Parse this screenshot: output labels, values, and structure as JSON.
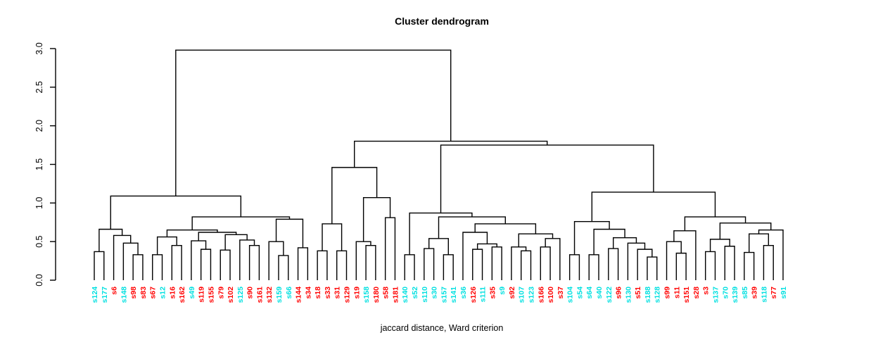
{
  "chart_data": {
    "type": "dendrogram",
    "title": "Cluster dendrogram",
    "subtitle": "jaccard distance, Ward criterion",
    "ylabel": "",
    "xlabel": "",
    "ylim": [
      0,
      3
    ],
    "ytick_labels": [
      "0.0",
      "0.5",
      "1.0",
      "1.5",
      "2.0",
      "2.5",
      "3.0"
    ],
    "ytick_values": [
      0,
      0.5,
      1,
      1.5,
      2,
      2.5,
      3
    ],
    "grid": "off",
    "legend": "none",
    "colors": {
      "red": "#ff0000",
      "cyan": "#00e0e0",
      "line": "#000000"
    },
    "leaves": [
      [
        "s124",
        "cyan"
      ],
      [
        "s177",
        "cyan"
      ],
      [
        "s6",
        "red"
      ],
      [
        "s148",
        "cyan"
      ],
      [
        "s98",
        "red"
      ],
      [
        "s83",
        "red"
      ],
      [
        "s67",
        "red"
      ],
      [
        "s12",
        "cyan"
      ],
      [
        "s16",
        "red"
      ],
      [
        "s162",
        "red"
      ],
      [
        "s49",
        "cyan"
      ],
      [
        "s119",
        "red"
      ],
      [
        "s155",
        "red"
      ],
      [
        "s79",
        "red"
      ],
      [
        "s102",
        "red"
      ],
      [
        "s125",
        "cyan"
      ],
      [
        "s90",
        "red"
      ],
      [
        "s161",
        "red"
      ],
      [
        "s132",
        "red"
      ],
      [
        "s159",
        "cyan"
      ],
      [
        "s66",
        "cyan"
      ],
      [
        "s144",
        "red"
      ],
      [
        "s34",
        "red"
      ],
      [
        "s18",
        "red"
      ],
      [
        "s33",
        "red"
      ],
      [
        "s31",
        "red"
      ],
      [
        "s129",
        "red"
      ],
      [
        "s19",
        "red"
      ],
      [
        "s158",
        "cyan"
      ],
      [
        "s180",
        "red"
      ],
      [
        "s58",
        "red"
      ],
      [
        "s181",
        "red"
      ],
      [
        "s140",
        "cyan"
      ],
      [
        "s52",
        "cyan"
      ],
      [
        "s110",
        "cyan"
      ],
      [
        "s30",
        "cyan"
      ],
      [
        "s157",
        "cyan"
      ],
      [
        "s141",
        "cyan"
      ],
      [
        "s36",
        "cyan"
      ],
      [
        "s126",
        "red"
      ],
      [
        "s111",
        "cyan"
      ],
      [
        "s35",
        "red"
      ],
      [
        "s9",
        "cyan"
      ],
      [
        "s92",
        "red"
      ],
      [
        "s107",
        "cyan"
      ],
      [
        "s123",
        "cyan"
      ],
      [
        "s166",
        "red"
      ],
      [
        "s100",
        "red"
      ],
      [
        "s37",
        "red"
      ],
      [
        "s104",
        "cyan"
      ],
      [
        "s54",
        "cyan"
      ],
      [
        "s64",
        "cyan"
      ],
      [
        "s40",
        "cyan"
      ],
      [
        "s122",
        "cyan"
      ],
      [
        "s96",
        "red"
      ],
      [
        "s130",
        "cyan"
      ],
      [
        "s51",
        "red"
      ],
      [
        "s188",
        "cyan"
      ],
      [
        "s128",
        "cyan"
      ],
      [
        "s99",
        "red"
      ],
      [
        "s11",
        "red"
      ],
      [
        "s151",
        "red"
      ],
      [
        "s28",
        "red"
      ],
      [
        "s3",
        "red"
      ],
      [
        "s137",
        "cyan"
      ],
      [
        "s70",
        "cyan"
      ],
      [
        "s139",
        "cyan"
      ],
      [
        "s85",
        "cyan"
      ],
      [
        "s39",
        "red"
      ],
      [
        "s118",
        "cyan"
      ],
      [
        "s77",
        "red"
      ],
      [
        "s91",
        "cyan"
      ]
    ],
    "tree": {
      "h": 2.98,
      "c": [
        {
          "h": 1.09,
          "c": [
            {
              "h": 0.66,
              "c": [
                {
                  "h": 0.37,
                  "c": [
                    "s124",
                    "s177"
                  ]
                },
                {
                  "h": 0.58,
                  "c": [
                    "s6",
                    {
                      "h": 0.48,
                      "c": [
                        "s148",
                        {
                          "h": 0.33,
                          "c": [
                            "s98",
                            "s83"
                          ]
                        }
                      ]
                    }
                  ]
                }
              ]
            },
            {
              "h": 0.82,
              "c": [
                {
                  "h": 0.65,
                  "c": [
                    {
                      "h": 0.56,
                      "c": [
                        {
                          "h": 0.33,
                          "c": [
                            "s67",
                            "s12"
                          ]
                        },
                        {
                          "h": 0.45,
                          "c": [
                            "s16",
                            "s162"
                          ]
                        }
                      ]
                    },
                    {
                      "h": 0.62,
                      "c": [
                        {
                          "h": 0.51,
                          "c": [
                            "s49",
                            {
                              "h": 0.4,
                              "c": [
                                "s119",
                                "s155"
                              ]
                            }
                          ]
                        },
                        {
                          "h": 0.59,
                          "c": [
                            {
                              "h": 0.39,
                              "c": [
                                "s79",
                                "s102"
                              ]
                            },
                            {
                              "h": 0.52,
                              "c": [
                                "s125",
                                {
                                  "h": 0.45,
                                  "c": [
                                    "s90",
                                    "s161"
                                  ]
                                }
                              ]
                            }
                          ]
                        }
                      ]
                    }
                  ]
                },
                {
                  "h": 0.79,
                  "c": [
                    {
                      "h": 0.5,
                      "c": [
                        "s132",
                        {
                          "h": 0.32,
                          "c": [
                            "s159",
                            "s66"
                          ]
                        }
                      ]
                    },
                    {
                      "h": 0.42,
                      "c": [
                        "s144",
                        "s34"
                      ]
                    }
                  ]
                }
              ]
            }
          ]
        },
        {
          "h": 1.8,
          "c": [
            {
              "h": 1.46,
              "c": [
                {
                  "h": 0.73,
                  "c": [
                    {
                      "h": 0.38,
                      "c": [
                        "s18",
                        "s33"
                      ]
                    },
                    {
                      "h": 0.38,
                      "c": [
                        "s31",
                        "s129"
                      ]
                    }
                  ]
                },
                {
                  "h": 1.07,
                  "c": [
                    {
                      "h": 0.5,
                      "c": [
                        "s19",
                        {
                          "h": 0.45,
                          "c": [
                            "s158",
                            "s180"
                          ]
                        }
                      ]
                    },
                    {
                      "h": 0.81,
                      "c": [
                        "s58",
                        "s181"
                      ]
                    }
                  ]
                }
              ]
            },
            {
              "h": 1.75,
              "c": [
                {
                  "h": 0.87,
                  "c": [
                    {
                      "h": 0.33,
                      "c": [
                        "s140",
                        "s52"
                      ]
                    },
                    {
                      "h": 0.82,
                      "c": [
                        {
                          "h": 0.54,
                          "c": [
                            {
                              "h": 0.41,
                              "c": [
                                "s110",
                                "s30"
                              ]
                            },
                            {
                              "h": 0.33,
                              "c": [
                                "s157",
                                "s141"
                              ]
                            }
                          ]
                        },
                        {
                          "h": 0.73,
                          "c": [
                            {
                              "h": 0.62,
                              "c": [
                                "s36",
                                {
                                  "h": 0.47,
                                  "c": [
                                    {
                                      "h": 0.4,
                                      "c": [
                                        "s126",
                                        "s111"
                                      ]
                                    },
                                    {
                                      "h": 0.43,
                                      "c": [
                                        "s35",
                                        "s9"
                                      ]
                                    }
                                  ]
                                }
                              ]
                            },
                            {
                              "h": 0.6,
                              "c": [
                                {
                                  "h": 0.43,
                                  "c": [
                                    "s92",
                                    {
                                      "h": 0.38,
                                      "c": [
                                        "s107",
                                        "s123"
                                      ]
                                    }
                                  ]
                                },
                                {
                                  "h": 0.54,
                                  "c": [
                                    {
                                      "h": 0.43,
                                      "c": [
                                        "s166",
                                        "s100"
                                      ]
                                    },
                                    "s37"
                                  ]
                                }
                              ]
                            }
                          ]
                        }
                      ]
                    }
                  ]
                },
                {
                  "h": 1.14,
                  "c": [
                    {
                      "h": 0.76,
                      "c": [
                        {
                          "h": 0.33,
                          "c": [
                            "s104",
                            "s54"
                          ]
                        },
                        {
                          "h": 0.66,
                          "c": [
                            {
                              "h": 0.33,
                              "c": [
                                "s64",
                                "s40"
                              ]
                            },
                            {
                              "h": 0.55,
                              "c": [
                                {
                                  "h": 0.41,
                                  "c": [
                                    "s122",
                                    "s96"
                                  ]
                                },
                                {
                                  "h": 0.48,
                                  "c": [
                                    "s130",
                                    {
                                      "h": 0.4,
                                      "c": [
                                        "s51",
                                        {
                                          "h": 0.3,
                                          "c": [
                                            "s188",
                                            "s128"
                                          ]
                                        }
                                      ]
                                    }
                                  ]
                                }
                              ]
                            }
                          ]
                        }
                      ]
                    },
                    {
                      "h": 0.82,
                      "c": [
                        {
                          "h": 0.64,
                          "c": [
                            {
                              "h": 0.5,
                              "c": [
                                "s99",
                                {
                                  "h": 0.35,
                                  "c": [
                                    "s11",
                                    "s151"
                                  ]
                                }
                              ]
                            },
                            "s28"
                          ]
                        },
                        {
                          "h": 0.74,
                          "c": [
                            {
                              "h": 0.53,
                              "c": [
                                {
                                  "h": 0.37,
                                  "c": [
                                    "s3",
                                    "s137"
                                  ]
                                },
                                {
                                  "h": 0.44,
                                  "c": [
                                    "s70",
                                    "s139"
                                  ]
                                }
                              ]
                            },
                            {
                              "h": 0.65,
                              "c": [
                                {
                                  "h": 0.6,
                                  "c": [
                                    {
                                      "h": 0.36,
                                      "c": [
                                        "s85",
                                        "s39"
                                      ]
                                    },
                                    {
                                      "h": 0.45,
                                      "c": [
                                        "s118",
                                        "s77"
                                      ]
                                    }
                                  ]
                                },
                                "s91"
                              ]
                            }
                          ]
                        }
                      ]
                    }
                  ]
                }
              ]
            }
          ]
        }
      ]
    }
  }
}
